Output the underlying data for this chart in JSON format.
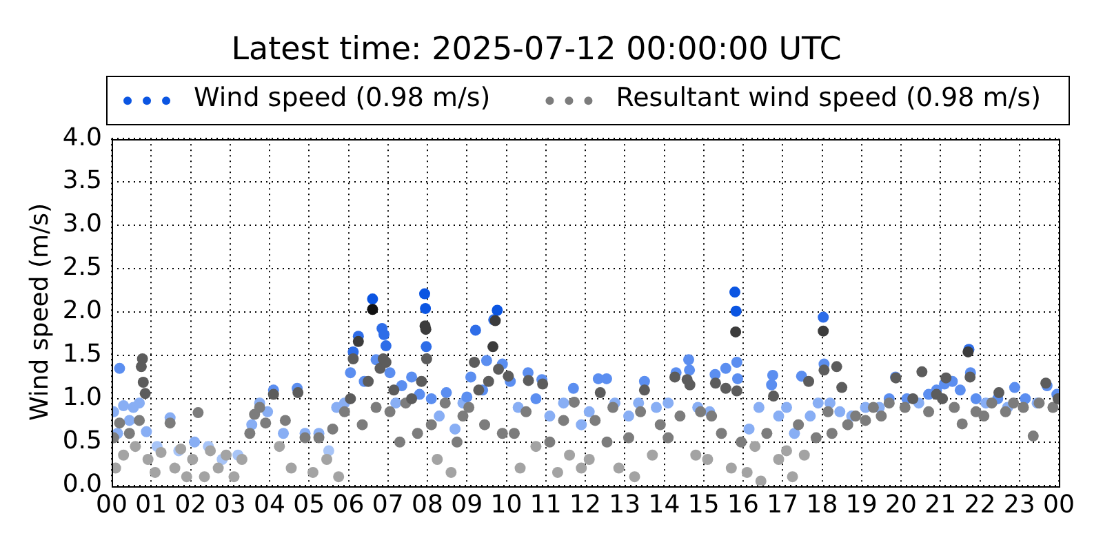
{
  "chart_data": {
    "type": "scatter",
    "title": "Latest time: 2025-07-12 00:00:00 UTC",
    "ylabel": "Wind speed (m/s)",
    "xlim": [
      0,
      24
    ],
    "xticks": [
      {
        "value": 0,
        "label": "00"
      },
      {
        "value": 1,
        "label": "01"
      },
      {
        "value": 2,
        "label": "02"
      },
      {
        "value": 3,
        "label": "03"
      },
      {
        "value": 4,
        "label": "04"
      },
      {
        "value": 5,
        "label": "05"
      },
      {
        "value": 6,
        "label": "06"
      },
      {
        "value": 7,
        "label": "07"
      },
      {
        "value": 8,
        "label": "08"
      },
      {
        "value": 9,
        "label": "09"
      },
      {
        "value": 10,
        "label": "10"
      },
      {
        "value": 11,
        "label": "11"
      },
      {
        "value": 12,
        "label": "12"
      },
      {
        "value": 13,
        "label": "13"
      },
      {
        "value": 14,
        "label": "14"
      },
      {
        "value": 15,
        "label": "15"
      },
      {
        "value": 16,
        "label": "16"
      },
      {
        "value": 17,
        "label": "17"
      },
      {
        "value": 18,
        "label": "18"
      },
      {
        "value": 19,
        "label": "19"
      },
      {
        "value": 20,
        "label": "20"
      },
      {
        "value": 21,
        "label": "21"
      },
      {
        "value": 22,
        "label": "22"
      },
      {
        "value": 23,
        "label": "23"
      },
      {
        "value": 24,
        "label": "00"
      }
    ],
    "ylim": [
      0,
      4
    ],
    "yticks": [
      {
        "value": 0,
        "label": "0.0"
      },
      0.5,
      {
        "value": 1,
        "label": "1.0"
      },
      1.5,
      {
        "value": 2,
        "label": "2.0"
      },
      2.5,
      {
        "value": 3,
        "label": "3.0"
      },
      3.5,
      {
        "value": 4,
        "label": "4.0"
      }
    ],
    "grid": true,
    "legend": "top",
    "marker": "circle",
    "series": [
      {
        "name": "Wind speed (0.98 m/s)",
        "color": "#0b55e2",
        "x": [
          0.05,
          0.15,
          0.2,
          0.3,
          0.45,
          0.55,
          0.7,
          0.88,
          1.15,
          1.48,
          1.7,
          2.1,
          2.45,
          2.8,
          3.2,
          3.55,
          3.75,
          3.95,
          4.1,
          4.35,
          4.7,
          4.9,
          5.25,
          5.5,
          5.7,
          5.9,
          6.05,
          6.12,
          6.25,
          6.4,
          6.61,
          6.7,
          6.85,
          6.9,
          6.95,
          7.05,
          7.2,
          7.35,
          7.6,
          7.8,
          7.93,
          7.95,
          7.97,
          8.1,
          8.3,
          8.48,
          8.7,
          8.9,
          9.0,
          9.1,
          9.22,
          9.4,
          9.5,
          9.68,
          9.77,
          9.9,
          10.1,
          10.3,
          10.55,
          10.75,
          10.9,
          11.1,
          11.45,
          11.7,
          11.9,
          12.1,
          12.33,
          12.54,
          12.75,
          13.1,
          13.35,
          13.5,
          13.8,
          14.1,
          14.3,
          14.62,
          14.64,
          14.85,
          15.15,
          15.29,
          15.56,
          15.79,
          15.82,
          15.84,
          15.86,
          16.15,
          16.4,
          16.72,
          16.75,
          16.9,
          17.1,
          17.3,
          17.48,
          17.7,
          17.9,
          18.03,
          18.05,
          18.2,
          18.45,
          18.75,
          19.1,
          19.45,
          19.7,
          19.86,
          20.15,
          20.45,
          20.7,
          20.9,
          21.1,
          21.3,
          21.5,
          21.72,
          21.76,
          21.9,
          22.15,
          22.45,
          22.7,
          22.88,
          23.15,
          23.45,
          23.7,
          23.95
        ],
        "values": [
          0.85,
          0.6,
          1.35,
          0.92,
          0.75,
          0.9,
          0.95,
          0.62,
          0.45,
          0.78,
          0.4,
          0.5,
          0.45,
          0.3,
          0.35,
          0.7,
          0.95,
          0.85,
          1.1,
          0.6,
          1.12,
          0.6,
          0.6,
          0.4,
          0.9,
          0.95,
          1.3,
          1.54,
          1.72,
          1.2,
          2.15,
          1.45,
          1.81,
          1.74,
          1.61,
          1.3,
          0.95,
          1.15,
          1.25,
          1.05,
          2.21,
          2.04,
          1.6,
          1.0,
          0.8,
          1.07,
          0.65,
          0.95,
          1.02,
          1.25,
          1.79,
          1.1,
          1.44,
          1.91,
          2.02,
          1.4,
          1.2,
          0.9,
          1.3,
          1.0,
          1.22,
          0.8,
          0.95,
          1.12,
          0.7,
          0.85,
          1.23,
          1.23,
          0.95,
          0.8,
          0.95,
          1.2,
          0.9,
          0.95,
          1.3,
          1.45,
          1.33,
          0.9,
          0.85,
          1.28,
          1.35,
          2.23,
          2.01,
          1.42,
          1.23,
          0.65,
          0.9,
          1.16,
          1.27,
          0.8,
          0.9,
          0.6,
          1.26,
          0.8,
          0.95,
          1.94,
          1.4,
          0.95,
          0.85,
          0.8,
          0.9,
          0.9,
          1.0,
          1.25,
          1.0,
          0.95,
          1.05,
          1.1,
          1.17,
          1.2,
          1.1,
          1.57,
          1.3,
          1.0,
          0.95,
          1.0,
          0.9,
          1.13,
          1.0,
          0.95,
          1.15,
          1.05
        ],
        "colors": [
          "#88aef4",
          "#88aef4",
          "#5b8ef0",
          "#88aef4",
          "#88aef4",
          "#88aef4",
          "#88aef4",
          "#88aef4",
          "#a7c4f7",
          "#88aef4",
          "#a7c4f7",
          "#88aef4",
          "#a7c4f7",
          "#a7c4f7",
          "#a7c4f7",
          "#88aef4",
          "#88aef4",
          "#88aef4",
          "#5b8ef0",
          "#88aef4",
          "#5b8ef0",
          "#88aef4",
          "#88aef4",
          "#a7c4f7",
          "#88aef4",
          "#88aef4",
          "#5b8ef0",
          "#2e6de8",
          "#2e6de8",
          "#5b8ef0",
          "#0b55e2",
          "#5b8ef0",
          "#2e6de8",
          "#2e6de8",
          "#2e6de8",
          "#5b8ef0",
          "#88aef4",
          "#5b8ef0",
          "#5b8ef0",
          "#5b8ef0",
          "#0b55e2",
          "#0b55e2",
          "#2e6de8",
          "#5b8ef0",
          "#88aef4",
          "#5b8ef0",
          "#88aef4",
          "#88aef4",
          "#5b8ef0",
          "#5b8ef0",
          "#2e6de8",
          "#5b8ef0",
          "#5b8ef0",
          "#2e6de8",
          "#0b55e2",
          "#5b8ef0",
          "#5b8ef0",
          "#88aef4",
          "#5b8ef0",
          "#5b8ef0",
          "#5b8ef0",
          "#88aef4",
          "#88aef4",
          "#5b8ef0",
          "#88aef4",
          "#88aef4",
          "#5b8ef0",
          "#5b8ef0",
          "#88aef4",
          "#88aef4",
          "#88aef4",
          "#5b8ef0",
          "#88aef4",
          "#88aef4",
          "#5b8ef0",
          "#5b8ef0",
          "#5b8ef0",
          "#88aef4",
          "#88aef4",
          "#5b8ef0",
          "#5b8ef0",
          "#0b55e2",
          "#0b55e2",
          "#5b8ef0",
          "#5b8ef0",
          "#88aef4",
          "#88aef4",
          "#5b8ef0",
          "#5b8ef0",
          "#88aef4",
          "#88aef4",
          "#88aef4",
          "#5b8ef0",
          "#88aef4",
          "#88aef4",
          "#2e6de8",
          "#5b8ef0",
          "#88aef4",
          "#88aef4",
          "#88aef4",
          "#88aef4",
          "#88aef4",
          "#5b8ef0",
          "#5b8ef0",
          "#5b8ef0",
          "#88aef4",
          "#5b8ef0",
          "#5b8ef0",
          "#5b8ef0",
          "#5b8ef0",
          "#5b8ef0",
          "#2e6de8",
          "#5b8ef0",
          "#5b8ef0",
          "#88aef4",
          "#5b8ef0",
          "#88aef4",
          "#5b8ef0",
          "#5b8ef0",
          "#88aef4",
          "#5b8ef0",
          "#5b8ef0"
        ]
      },
      {
        "name": "Resultant wind speed (0.98 m/s)",
        "color": "#7c7c7c",
        "x": [
          0.05,
          0.1,
          0.2,
          0.3,
          0.45,
          0.6,
          0.7,
          0.75,
          0.78,
          0.8,
          0.85,
          0.92,
          1.1,
          1.25,
          1.48,
          1.6,
          1.75,
          1.9,
          2.05,
          2.19,
          2.35,
          2.5,
          2.7,
          2.9,
          3.1,
          3.3,
          3.5,
          3.62,
          3.75,
          3.9,
          4.1,
          4.25,
          4.4,
          4.55,
          4.72,
          4.9,
          5.1,
          5.25,
          5.45,
          5.6,
          5.75,
          5.9,
          6.05,
          6.12,
          6.25,
          6.35,
          6.5,
          6.61,
          6.7,
          6.8,
          6.88,
          6.95,
          7.05,
          7.15,
          7.3,
          7.45,
          7.6,
          7.75,
          7.85,
          7.94,
          7.96,
          7.98,
          8.1,
          8.25,
          8.45,
          8.6,
          8.75,
          8.9,
          9.05,
          9.19,
          9.3,
          9.45,
          9.55,
          9.66,
          9.72,
          9.8,
          9.9,
          10.05,
          10.2,
          10.35,
          10.5,
          10.56,
          10.75,
          10.92,
          11.1,
          11.3,
          11.45,
          11.6,
          11.72,
          11.9,
          12.1,
          12.25,
          12.38,
          12.55,
          12.7,
          12.85,
          13.1,
          13.25,
          13.4,
          13.5,
          13.7,
          13.9,
          14.1,
          14.27,
          14.4,
          14.58,
          14.65,
          14.8,
          14.92,
          15.1,
          15.2,
          15.3,
          15.45,
          15.56,
          15.7,
          15.81,
          15.84,
          15.95,
          16.1,
          16.3,
          16.45,
          16.6,
          16.77,
          16.9,
          17.1,
          17.25,
          17.4,
          17.55,
          17.66,
          17.85,
          18.03,
          18.05,
          18.15,
          18.25,
          18.37,
          18.5,
          18.65,
          18.85,
          19.1,
          19.3,
          19.5,
          19.7,
          19.87,
          20.1,
          20.3,
          20.53,
          20.7,
          20.9,
          21.05,
          21.14,
          21.35,
          21.55,
          21.7,
          21.75,
          21.9,
          22.1,
          22.3,
          22.48,
          22.65,
          22.85,
          23.1,
          23.35,
          23.5,
          23.67,
          23.85,
          23.98
        ],
        "values": [
          0.55,
          0.2,
          0.72,
          0.35,
          0.6,
          0.45,
          0.75,
          1.37,
          1.46,
          1.19,
          1.06,
          0.3,
          0.15,
          0.38,
          0.72,
          0.2,
          0.42,
          0.1,
          0.3,
          0.84,
          0.1,
          0.4,
          0.2,
          0.35,
          0.1,
          0.3,
          0.6,
          0.82,
          0.9,
          0.72,
          1.05,
          0.45,
          0.75,
          0.2,
          1.07,
          0.55,
          0.15,
          0.55,
          0.3,
          0.65,
          0.1,
          0.85,
          1.0,
          1.46,
          1.66,
          0.7,
          1.2,
          2.03,
          0.9,
          1.35,
          1.46,
          1.42,
          0.85,
          1.1,
          0.5,
          0.95,
          1.0,
          0.6,
          1.2,
          1.84,
          1.8,
          1.46,
          0.7,
          0.3,
          0.95,
          0.15,
          0.5,
          0.8,
          0.9,
          1.42,
          1.1,
          0.7,
          1.2,
          1.6,
          1.9,
          1.34,
          0.6,
          1.26,
          0.6,
          0.2,
          0.85,
          1.21,
          0.45,
          1.17,
          0.5,
          0.15,
          0.75,
          0.35,
          0.96,
          0.2,
          0.3,
          0.75,
          1.07,
          0.5,
          0.9,
          0.2,
          0.55,
          0.1,
          0.85,
          1.1,
          0.35,
          0.7,
          0.55,
          1.25,
          0.8,
          1.22,
          1.16,
          0.35,
          0.85,
          0.3,
          0.8,
          1.18,
          0.6,
          1.12,
          0.2,
          1.77,
          1.09,
          0.5,
          0.15,
          0.45,
          0.05,
          0.6,
          1.03,
          0.3,
          0.4,
          0.1,
          0.7,
          0.35,
          1.2,
          0.55,
          1.78,
          1.33,
          0.85,
          0.6,
          1.37,
          1.13,
          0.7,
          0.8,
          0.75,
          0.9,
          0.8,
          0.95,
          1.24,
          0.9,
          1.0,
          1.31,
          0.85,
          1.05,
          1.0,
          1.24,
          0.9,
          0.71,
          1.54,
          1.25,
          0.85,
          0.8,
          0.95,
          1.07,
          0.85,
          0.95,
          0.9,
          0.57,
          0.95,
          1.18,
          0.9,
          1.0
        ],
        "colors": [
          "#7c7c7c",
          "#a3a3a3",
          "#7c7c7c",
          "#a3a3a3",
          "#7c7c7c",
          "#a3a3a3",
          "#7c7c7c",
          "#5c5c5c",
          "#5c5c5c",
          "#5c5c5c",
          "#5c5c5c",
          "#a3a3a3",
          "#a3a3a3",
          "#a3a3a3",
          "#7c7c7c",
          "#a3a3a3",
          "#a3a3a3",
          "#a3a3a3",
          "#a3a3a3",
          "#7c7c7c",
          "#a3a3a3",
          "#a3a3a3",
          "#a3a3a3",
          "#a3a3a3",
          "#a3a3a3",
          "#a3a3a3",
          "#7c7c7c",
          "#7c7c7c",
          "#7c7c7c",
          "#7c7c7c",
          "#5c5c5c",
          "#a3a3a3",
          "#7c7c7c",
          "#a3a3a3",
          "#5c5c5c",
          "#7c7c7c",
          "#a3a3a3",
          "#7c7c7c",
          "#a3a3a3",
          "#7c7c7c",
          "#a3a3a3",
          "#7c7c7c",
          "#5c5c5c",
          "#5c5c5c",
          "#3c3c3c",
          "#7c7c7c",
          "#5c5c5c",
          "#111111",
          "#7c7c7c",
          "#5c5c5c",
          "#5c5c5c",
          "#5c5c5c",
          "#7c7c7c",
          "#5c5c5c",
          "#7c7c7c",
          "#7c7c7c",
          "#5c5c5c",
          "#7c7c7c",
          "#5c5c5c",
          "#3c3c3c",
          "#3c3c3c",
          "#5c5c5c",
          "#7c7c7c",
          "#a3a3a3",
          "#7c7c7c",
          "#a3a3a3",
          "#7c7c7c",
          "#7c7c7c",
          "#7c7c7c",
          "#5c5c5c",
          "#5c5c5c",
          "#7c7c7c",
          "#5c5c5c",
          "#3c3c3c",
          "#3c3c3c",
          "#5c5c5c",
          "#7c7c7c",
          "#5c5c5c",
          "#7c7c7c",
          "#a3a3a3",
          "#7c7c7c",
          "#5c5c5c",
          "#a3a3a3",
          "#5c5c5c",
          "#7c7c7c",
          "#a3a3a3",
          "#7c7c7c",
          "#a3a3a3",
          "#7c7c7c",
          "#a3a3a3",
          "#a3a3a3",
          "#7c7c7c",
          "#5c5c5c",
          "#7c7c7c",
          "#7c7c7c",
          "#a3a3a3",
          "#7c7c7c",
          "#a3a3a3",
          "#7c7c7c",
          "#5c5c5c",
          "#a3a3a3",
          "#7c7c7c",
          "#7c7c7c",
          "#5c5c5c",
          "#7c7c7c",
          "#5c5c5c",
          "#5c5c5c",
          "#a3a3a3",
          "#7c7c7c",
          "#a3a3a3",
          "#7c7c7c",
          "#5c5c5c",
          "#7c7c7c",
          "#5c5c5c",
          "#a3a3a3",
          "#3c3c3c",
          "#5c5c5c",
          "#7c7c7c",
          "#a3a3a3",
          "#a3a3a3",
          "#a3a3a3",
          "#7c7c7c",
          "#5c5c5c",
          "#a3a3a3",
          "#a3a3a3",
          "#a3a3a3",
          "#7c7c7c",
          "#a3a3a3",
          "#5c5c5c",
          "#7c7c7c",
          "#3c3c3c",
          "#5c5c5c",
          "#7c7c7c",
          "#7c7c7c",
          "#5c5c5c",
          "#5c5c5c",
          "#7c7c7c",
          "#7c7c7c",
          "#7c7c7c",
          "#7c7c7c",
          "#7c7c7c",
          "#7c7c7c",
          "#5c5c5c",
          "#7c7c7c",
          "#5c5c5c",
          "#5c5c5c",
          "#7c7c7c",
          "#5c5c5c",
          "#5c5c5c",
          "#5c5c5c",
          "#7c7c7c",
          "#7c7c7c",
          "#3c3c3c",
          "#5c5c5c",
          "#7c7c7c",
          "#7c7c7c",
          "#7c7c7c",
          "#5c5c5c",
          "#7c7c7c",
          "#7c7c7c",
          "#7c7c7c",
          "#7c7c7c",
          "#7c7c7c",
          "#5c5c5c",
          "#7c7c7c",
          "#5c5c5c"
        ]
      }
    ]
  }
}
